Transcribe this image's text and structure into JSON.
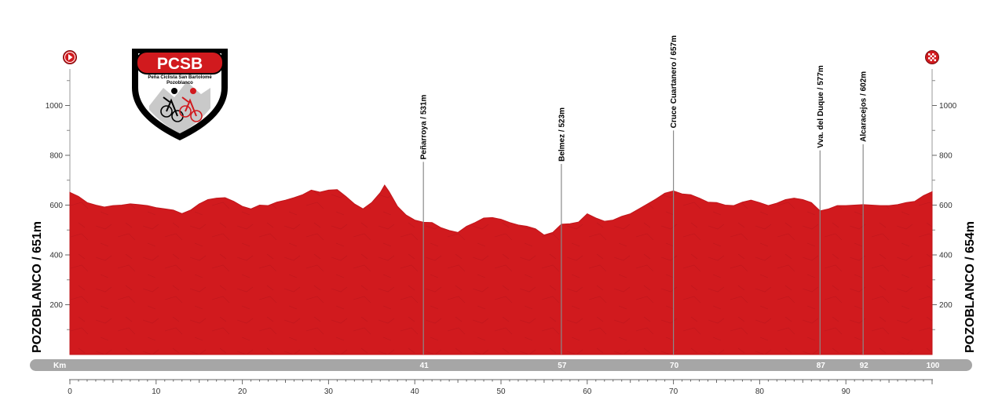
{
  "chart_data": {
    "type": "area",
    "title": "",
    "xlabel": "Km",
    "ylabel": "",
    "xlim": [
      0,
      100
    ],
    "ylim": [
      0,
      1100
    ],
    "x_ticks": [
      0,
      10,
      20,
      30,
      40,
      50,
      60,
      70,
      80,
      90
    ],
    "y_ticks": [
      200,
      400,
      600,
      800,
      1000
    ],
    "start_label": "POZOBLANCO / 651m",
    "finish_label": "POZOBLANCO / 654m",
    "km_bar": [
      {
        "km": 41,
        "label": "41"
      },
      {
        "km": 57,
        "label": "57"
      },
      {
        "km": 70,
        "label": "70"
      },
      {
        "km": 87,
        "label": "87"
      },
      {
        "km": 92,
        "label": "92"
      },
      {
        "km": 100,
        "label": "100"
      }
    ],
    "waypoints": [
      {
        "km": 41,
        "elevation": 531,
        "label": "Peñarroya / 531m"
      },
      {
        "km": 57,
        "elevation": 523,
        "label": "Belmez / 523m"
      },
      {
        "km": 70,
        "elevation": 657,
        "label": "Cruce Cuartanero / 657m"
      },
      {
        "km": 87,
        "elevation": 577,
        "label": "Vva. del Duque / 577m"
      },
      {
        "km": 92,
        "elevation": 602,
        "label": "Alcaracejos / 602m"
      }
    ],
    "profile": {
      "x": [
        0,
        1,
        2,
        3,
        4,
        5,
        6,
        7,
        8,
        9,
        10,
        11,
        12,
        13,
        14,
        15,
        16,
        17,
        18,
        19,
        20,
        21,
        22,
        23,
        24,
        25,
        26,
        27,
        28,
        29,
        30,
        31,
        32,
        33,
        34,
        35,
        36,
        36.5,
        37,
        38,
        39,
        40,
        41,
        42,
        43,
        44,
        45,
        46,
        47,
        48,
        49,
        50,
        51,
        52,
        53,
        54,
        55,
        56,
        57,
        58,
        59,
        60,
        61,
        62,
        63,
        64,
        65,
        66,
        67,
        68,
        69,
        70,
        71,
        72,
        73,
        74,
        75,
        76,
        77,
        78,
        79,
        80,
        81,
        82,
        83,
        84,
        85,
        86,
        87,
        88,
        89,
        90,
        91,
        92,
        93,
        94,
        95,
        96,
        97,
        98,
        99,
        100
      ],
      "y": [
        651,
        635,
        610,
        600,
        592,
        598,
        600,
        605,
        602,
        598,
        590,
        585,
        580,
        566,
        580,
        605,
        622,
        628,
        630,
        615,
        595,
        585,
        600,
        598,
        612,
        620,
        630,
        642,
        660,
        652,
        660,
        662,
        635,
        605,
        585,
        610,
        650,
        680,
        655,
        595,
        560,
        540,
        531,
        530,
        510,
        498,
        490,
        515,
        530,
        548,
        550,
        543,
        530,
        520,
        515,
        505,
        480,
        490,
        523,
        525,
        532,
        565,
        548,
        535,
        540,
        555,
        565,
        585,
        605,
        625,
        648,
        657,
        645,
        642,
        628,
        612,
        610,
        600,
        598,
        612,
        620,
        610,
        598,
        608,
        622,
        628,
        622,
        610,
        577,
        585,
        598,
        598,
        600,
        602,
        600,
        598,
        598,
        602,
        610,
        615,
        638,
        654
      ]
    }
  }
}
